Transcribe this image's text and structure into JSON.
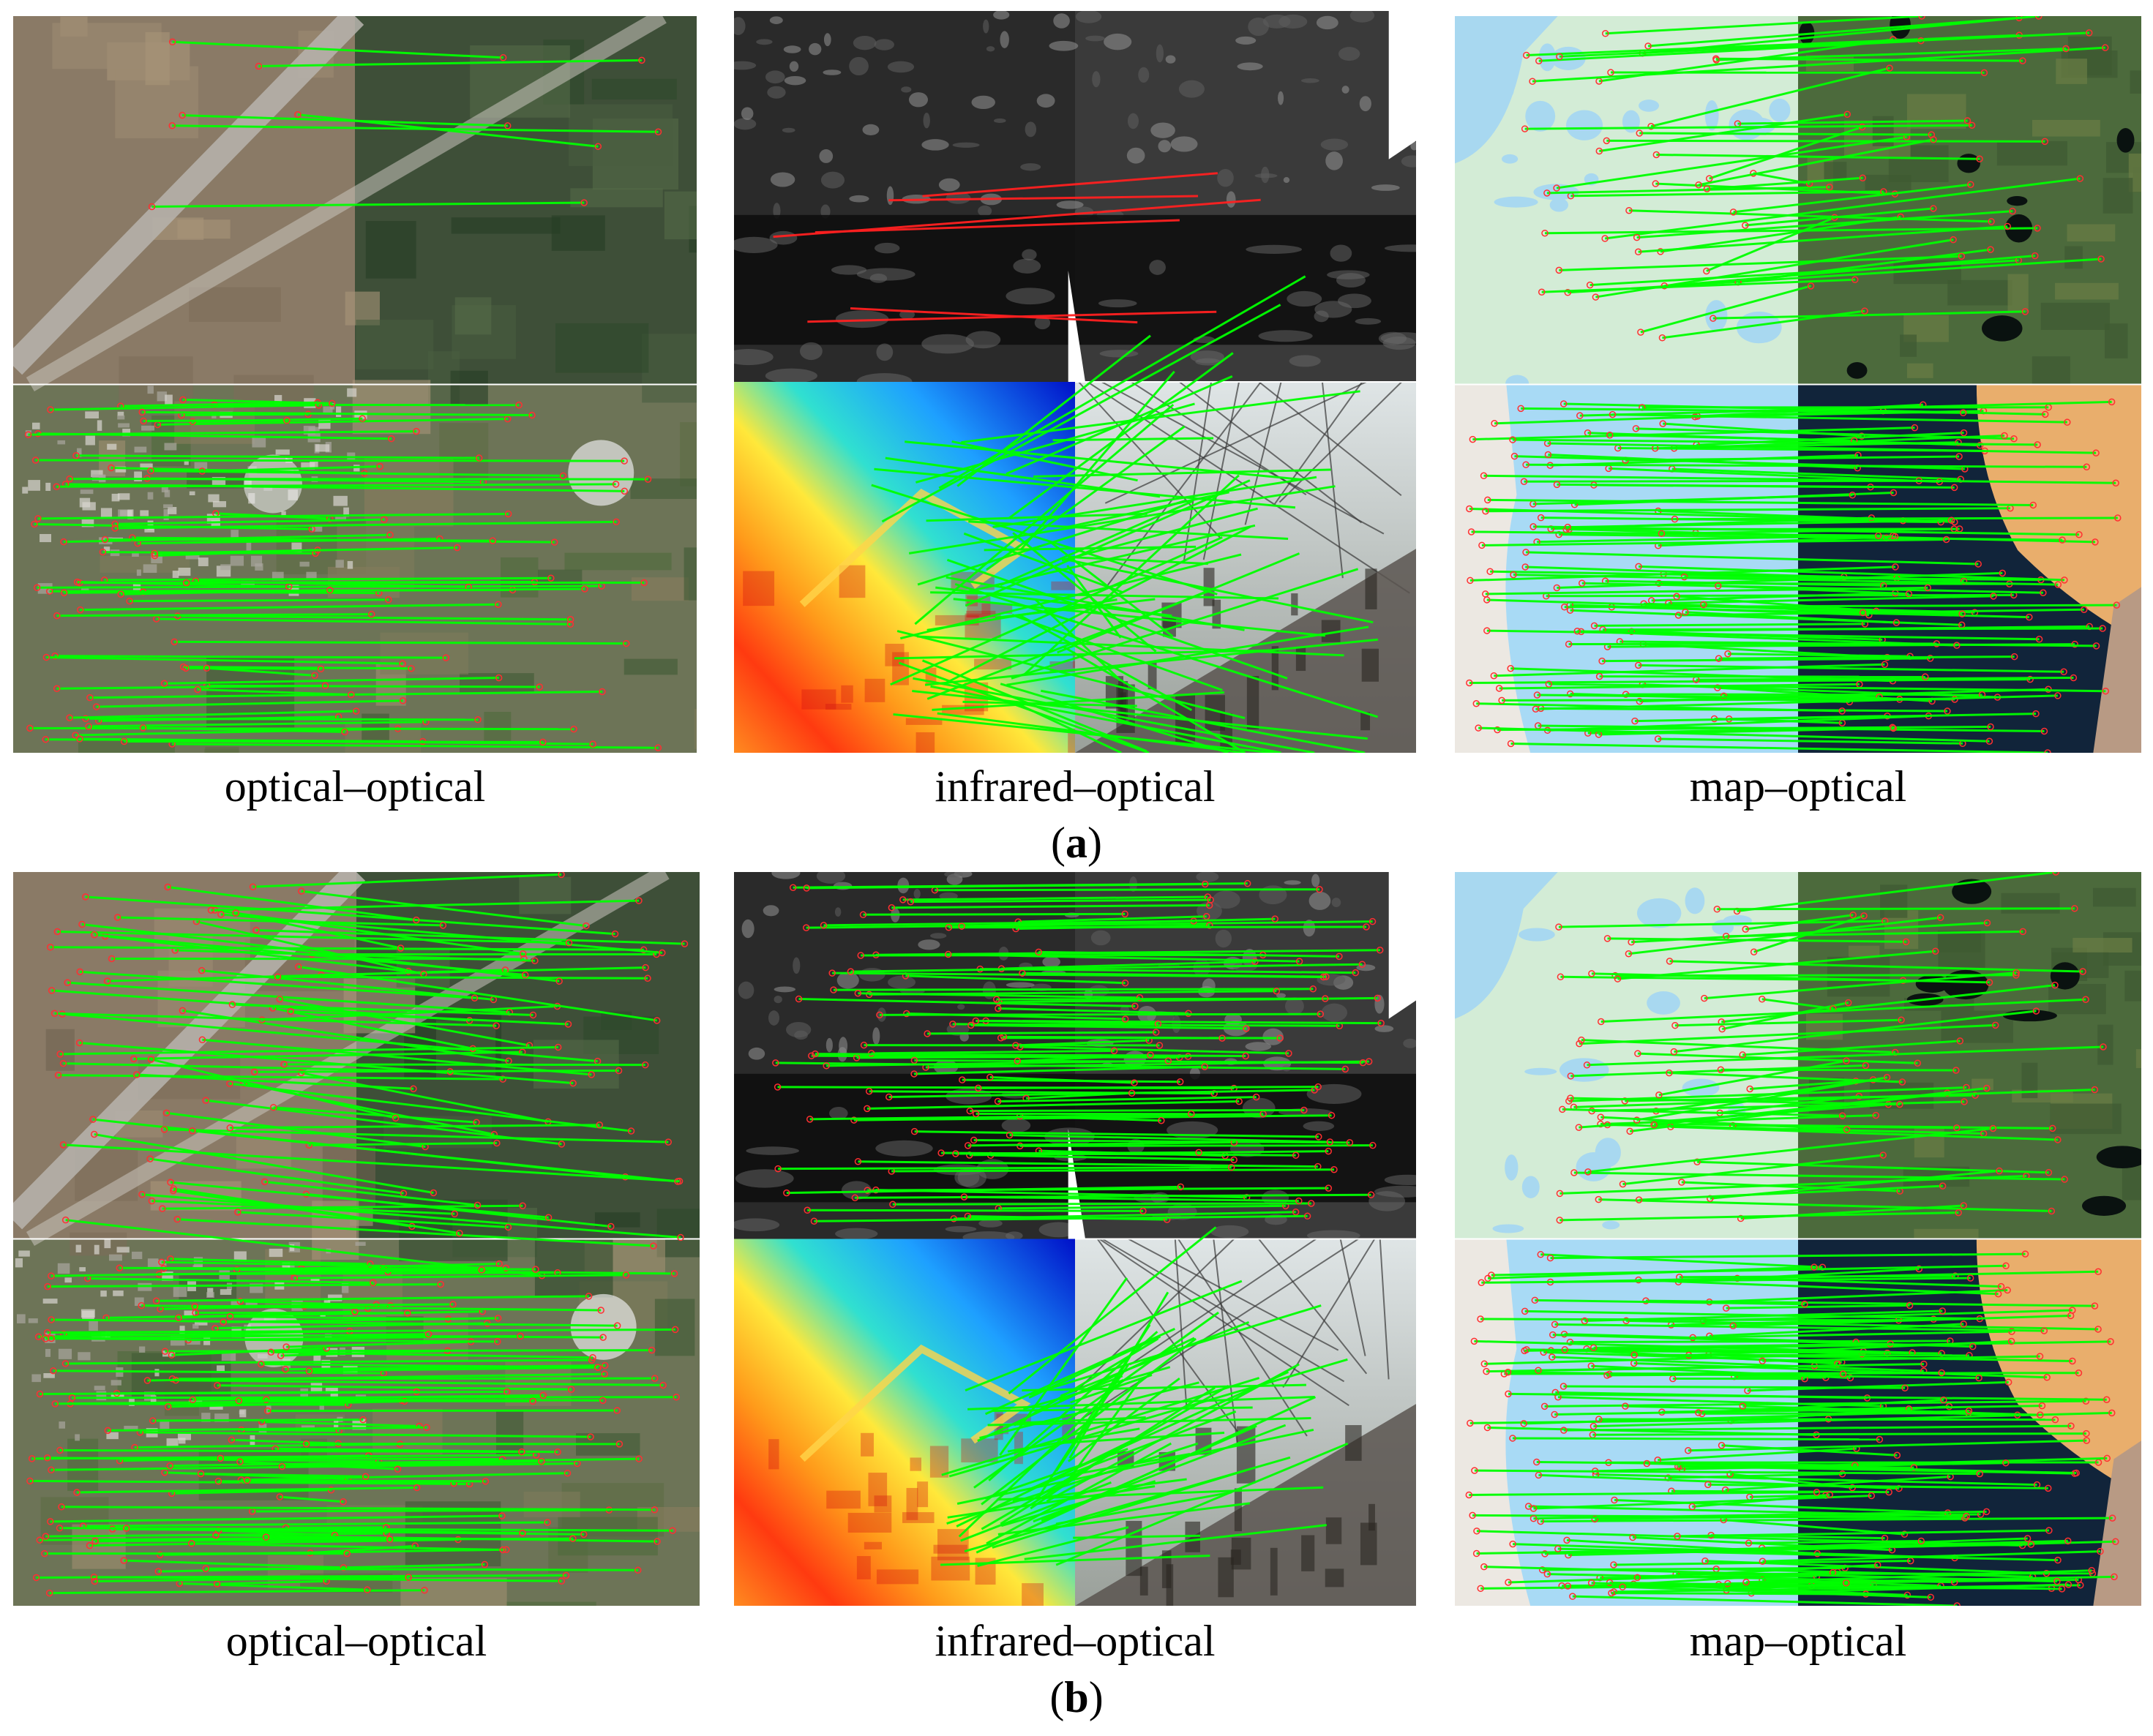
{
  "figure": {
    "row_a": {
      "label": "a",
      "captions": [
        "optical–optical",
        "infrared–optical",
        "map–optical"
      ]
    },
    "row_b": {
      "label": "b",
      "captions": [
        "optical–optical",
        "infrared–optical",
        "map–optical"
      ]
    }
  },
  "colors": {
    "match_line": "#00ff00",
    "outlier_line": "#ff2020",
    "keypoint": "#ff3030"
  }
}
